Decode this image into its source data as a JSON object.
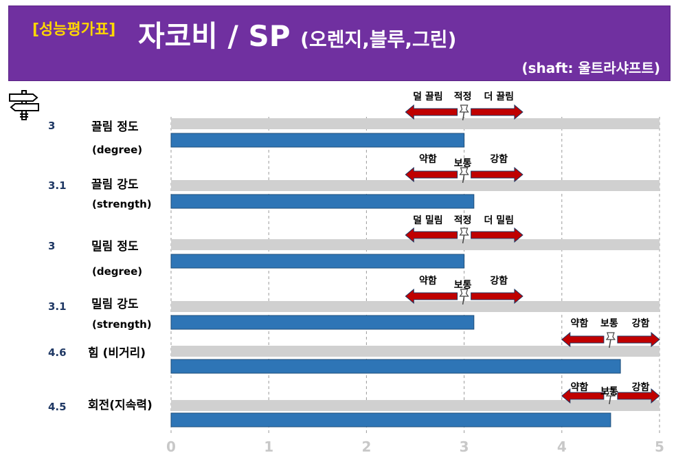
{
  "header": {
    "badge": "[성능평가표]",
    "title_main": "자코비 / SP",
    "title_paren": "(오렌지,블루,그린)",
    "shaft": "(shaft: 울트라샤프트)",
    "header_color": "#7030a0",
    "badge_color": "#ffd700"
  },
  "icons": {
    "signpost": "signpost-icon",
    "pin": "pushpin-icon"
  },
  "colors": {
    "bar": "#2e75b6",
    "track": "#d0d0d0",
    "arrow": "#c00000",
    "arrow_edge": "#1f3864"
  },
  "chart_data": {
    "type": "bar",
    "orientation": "horizontal",
    "xlim": [
      0,
      5
    ],
    "xticks": [
      "0",
      "1",
      "2",
      "3",
      "4",
      "5"
    ],
    "grid": true,
    "rows": [
      {
        "label": "끌림 정도",
        "sub": "(degree)",
        "value": 3,
        "value_label": "3",
        "marker": {
          "left": "덜 끌림",
          "center": "적정",
          "right": "더 끌림",
          "at": 3,
          "from": 2.4,
          "to": 3.6
        }
      },
      {
        "label": "끌림 강도",
        "sub": "(strength)",
        "value": 3.1,
        "value_label": "3.1",
        "marker": {
          "left": "약함",
          "center": "보통",
          "right": "강함",
          "at": 3,
          "from": 2.4,
          "to": 3.6
        }
      },
      {
        "label": "밀림 정도",
        "sub": "(degree)",
        "value": 3,
        "value_label": "3",
        "marker": {
          "left": "덜 밀림",
          "center": "적정",
          "right": "더 밀림",
          "at": 3,
          "from": 2.4,
          "to": 3.6
        }
      },
      {
        "label": "밀림 강도",
        "sub": "(strength)",
        "value": 3.1,
        "value_label": "3.1",
        "marker": {
          "left": "약함",
          "center": "보통",
          "right": "강함",
          "at": 3,
          "from": 2.4,
          "to": 3.6
        }
      },
      {
        "label": "힘 (비거리)",
        "sub": "",
        "value": 4.6,
        "value_label": "4.6",
        "marker": {
          "left": "약함",
          "center": "보통",
          "right": "강함",
          "at": 4.5,
          "from": 4,
          "to": 5
        }
      },
      {
        "label": "회전(지속력)",
        "sub": "",
        "value": 4.5,
        "value_label": "4.5",
        "marker": {
          "left": "약함",
          "center": "보통",
          "right": "강함",
          "at": 4.5,
          "from": 4,
          "to": 5
        }
      }
    ]
  }
}
